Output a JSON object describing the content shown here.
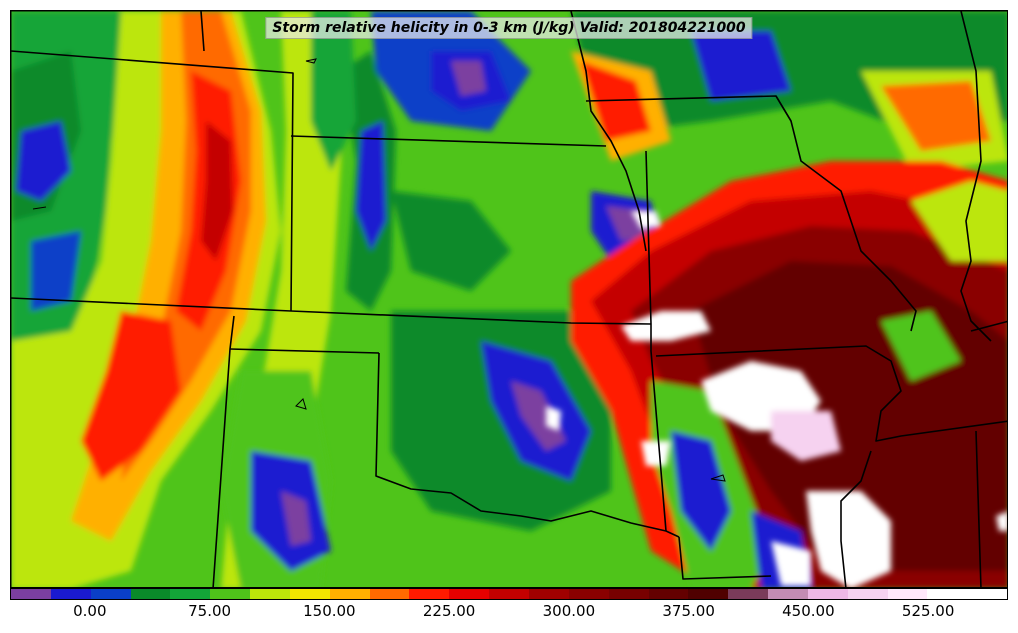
{
  "title": "Storm relative helicity in 0-3 km (J/kg) Valid: 201804221000",
  "colorbar": {
    "min": -50,
    "max": 575,
    "step": 25,
    "colors": [
      "#7b3fa0",
      "#1a1ad0",
      "#0a3fc8",
      "#0a8a2a",
      "#13a538",
      "#4fc41a",
      "#bce60a",
      "#f2e600",
      "#ffb000",
      "#ff6a00",
      "#ff1a00",
      "#e60000",
      "#c40000",
      "#a00000",
      "#8a0000",
      "#780000",
      "#640000",
      "#500000",
      "#7a3b5a",
      "#c48cb4",
      "#eeb8e6",
      "#f6d2f0",
      "#ffe8fb",
      "#ffffff",
      "#ffffff"
    ],
    "ticks": [
      {
        "value": 0,
        "label": "0.00"
      },
      {
        "value": 75,
        "label": "75.00"
      },
      {
        "value": 150,
        "label": "150.00"
      },
      {
        "value": 225,
        "label": "225.00"
      },
      {
        "value": 300,
        "label": "300.00"
      },
      {
        "value": 375,
        "label": "375.00"
      },
      {
        "value": 450,
        "label": "450.00"
      },
      {
        "value": 525,
        "label": "525.00"
      }
    ]
  }
}
